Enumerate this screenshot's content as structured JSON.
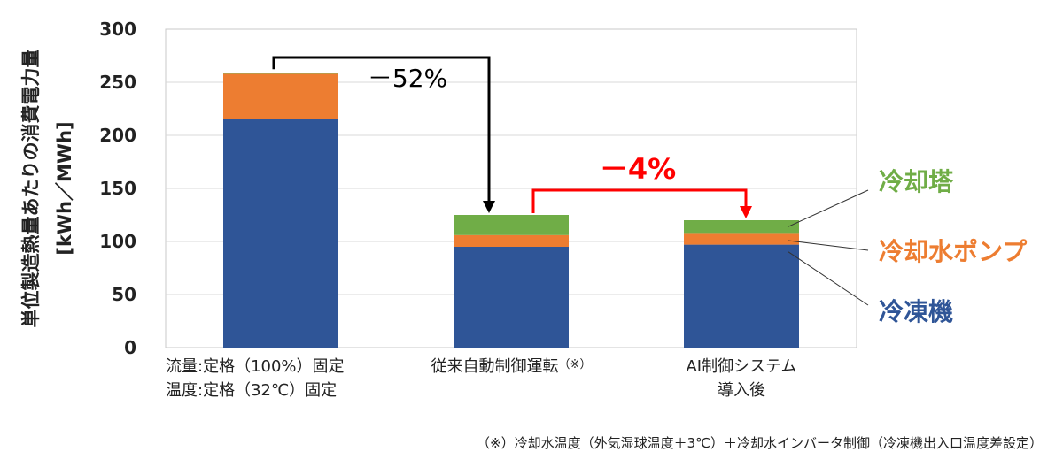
{
  "chart_data": {
    "type": "bar",
    "stacked": true,
    "ylim": [
      0,
      300
    ],
    "yticks": [
      0,
      50,
      100,
      150,
      200,
      250,
      300
    ],
    "ylabel_line1": "単位製造熱量あたりの消費電力量",
    "ylabel_line2": "[kWh／MWh]",
    "categories": [
      {
        "lines": [
          "流量:定格（100%）固定",
          "温度:定格（32℃）固定"
        ]
      },
      {
        "lines": [
          "従来自動制御運転"
        ],
        "suffix": "（※）"
      },
      {
        "lines": [
          "AI制御システム",
          "導入後"
        ]
      }
    ],
    "series": [
      {
        "name": "冷凍機",
        "color": "#2f5597",
        "values": [
          215,
          95,
          97
        ]
      },
      {
        "name": "冷却水ポンプ",
        "color": "#ed7d31",
        "values": [
          43,
          11,
          11
        ]
      },
      {
        "name": "冷却塔",
        "color": "#70ad47",
        "values": [
          1,
          19,
          12
        ]
      }
    ],
    "annotations": [
      {
        "text": "－52%",
        "from": 0,
        "to": 1,
        "color": "#000000"
      },
      {
        "text": "－4%",
        "from": 1,
        "to": 2,
        "color": "#ff0000"
      }
    ],
    "footnote": "（※）冷却水温度（外気湿球温度＋3℃）＋冷却水インバータ制御（冷凍機出入口温度差設定）"
  }
}
